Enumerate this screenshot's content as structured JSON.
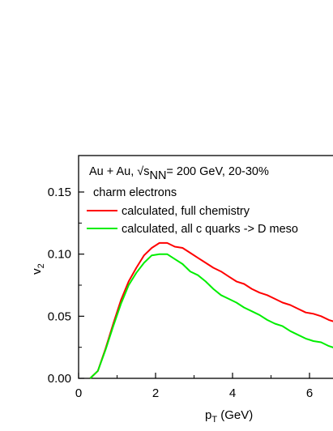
{
  "chart_data": {
    "type": "line",
    "title": "",
    "xlabel": {
      "main": "p",
      "sub": "T",
      "unit": " (GeV)"
    },
    "ylabel": {
      "main": "v",
      "sub": "2"
    },
    "xlim": [
      0,
      6.7
    ],
    "ylim": [
      0,
      0.18
    ],
    "x_ticks": [
      0,
      2,
      4,
      6
    ],
    "x_tick_labels": [
      "0",
      "2",
      "4",
      "6"
    ],
    "y_ticks": [
      0,
      0.05,
      0.1,
      0.15
    ],
    "y_tick_labels": [
      "0.00",
      "0.05",
      "0.10",
      "0.15"
    ],
    "grid": false,
    "annotations": {
      "system_main": "Au + Au, √s",
      "system_sub": "NN",
      "system_tail": "= 200 GeV, 20-30%",
      "particle": "charm electrons"
    },
    "series": [
      {
        "name": "calculated, full chemistry",
        "color": "#ff0000",
        "x": [
          0.3,
          0.5,
          0.7,
          0.9,
          1.1,
          1.3,
          1.5,
          1.7,
          1.9,
          2.1,
          2.3,
          2.5,
          2.7,
          2.9,
          3.1,
          3.3,
          3.5,
          3.7,
          3.9,
          4.1,
          4.3,
          4.5,
          4.7,
          4.9,
          5.1,
          5.3,
          5.5,
          5.7,
          5.9,
          6.1,
          6.3,
          6.5,
          6.7
        ],
        "y": [
          0.0,
          0.006,
          0.024,
          0.044,
          0.063,
          0.078,
          0.089,
          0.099,
          0.105,
          0.109,
          0.109,
          0.106,
          0.105,
          0.101,
          0.097,
          0.093,
          0.089,
          0.086,
          0.082,
          0.078,
          0.076,
          0.072,
          0.069,
          0.067,
          0.064,
          0.061,
          0.059,
          0.056,
          0.053,
          0.052,
          0.05,
          0.047,
          0.045
        ]
      },
      {
        "name": "calculated, all c quarks -> D meso",
        "color": "#00ee00",
        "x": [
          0.3,
          0.5,
          0.7,
          0.9,
          1.1,
          1.3,
          1.5,
          1.7,
          1.9,
          2.1,
          2.3,
          2.5,
          2.7,
          2.9,
          3.1,
          3.3,
          3.5,
          3.7,
          3.9,
          4.1,
          4.3,
          4.5,
          4.7,
          4.9,
          5.1,
          5.3,
          5.5,
          5.7,
          5.9,
          6.1,
          6.3,
          6.5,
          6.7
        ],
        "y": [
          0.0,
          0.006,
          0.023,
          0.042,
          0.06,
          0.075,
          0.085,
          0.093,
          0.099,
          0.1,
          0.1,
          0.096,
          0.092,
          0.086,
          0.083,
          0.078,
          0.072,
          0.067,
          0.064,
          0.061,
          0.057,
          0.054,
          0.051,
          0.047,
          0.044,
          0.042,
          0.038,
          0.035,
          0.032,
          0.03,
          0.029,
          0.026,
          0.024
        ]
      }
    ]
  }
}
